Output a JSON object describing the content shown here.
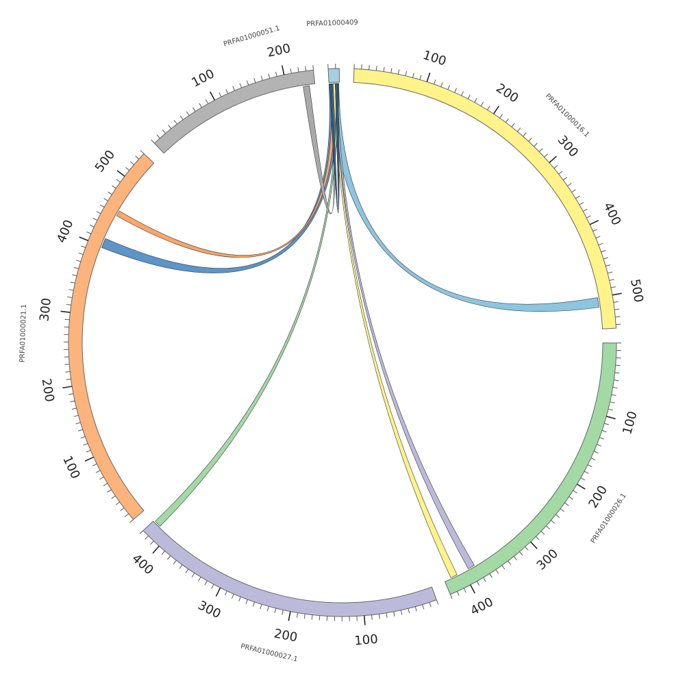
{
  "diagram": {
    "type": "circos",
    "segments": [
      {
        "name": "PRFA01000409",
        "length": 15,
        "color": "#a6cee3",
        "tick_labels": []
      },
      {
        "name": "PRFA01000016.1",
        "length": 545,
        "color": "#fff38a",
        "tick_labels": [
          "100",
          "200",
          "300",
          "400",
          "500"
        ]
      },
      {
        "name": "PRFA01000026.1",
        "length": 430,
        "color": "#a3d9a5",
        "tick_labels": [
          "100",
          "200",
          "300",
          "400"
        ]
      },
      {
        "name": "PRFA01000027.1",
        "length": 430,
        "color": "#bcbadb",
        "tick_labels": [
          "100",
          "200",
          "300",
          "400"
        ]
      },
      {
        "name": "PRFA01000021.1",
        "length": 540,
        "color": "#fdb37c",
        "tick_labels": [
          "100",
          "200",
          "300",
          "400",
          "500"
        ]
      },
      {
        "name": "PRFA01000051.1",
        "length": 240,
        "color": "#b3b3b3",
        "tick_labels": [
          "100",
          "200"
        ]
      }
    ],
    "links": [
      {
        "from": "PRFA01000409",
        "from_range": [
          0,
          14
        ],
        "to": "PRFA01000016.1",
        "to_range": [
          500,
          514
        ],
        "color": "#8ec5e0"
      },
      {
        "from": "PRFA01000409",
        "from_range": [
          0,
          14
        ],
        "to": "PRFA01000021.1",
        "to_range": [
          398,
          412
        ],
        "color": "#5b95c9"
      },
      {
        "from": "PRFA01000409",
        "from_range": [
          3,
          9
        ],
        "to": "PRFA01000021.1",
        "to_range": [
          448,
          456
        ],
        "color": "#fca66a"
      },
      {
        "from": "PRFA01000409",
        "from_range": [
          2,
          7
        ],
        "to": "PRFA01000051.1",
        "to_range": [
          223,
          232
        ],
        "color": "#a9a9a9"
      },
      {
        "from": "PRFA01000409",
        "from_range": [
          6,
          9
        ],
        "to": "PRFA01000026.1",
        "to_range": [
          410,
          420
        ],
        "color": "#fff38a"
      },
      {
        "from": "PRFA01000409",
        "from_range": [
          9,
          12
        ],
        "to": "PRFA01000026.1",
        "to_range": [
          382,
          392
        ],
        "color": "#bcbadb"
      },
      {
        "from": "PRFA01000409",
        "from_range": [
          10,
          13
        ],
        "to": "PRFA01000027.1",
        "to_range": [
          418,
          428
        ],
        "color": "#a3d9a5"
      },
      {
        "from": "PRFA01000409",
        "from_range": [
          1,
          5
        ],
        "to": "PRFA01000409",
        "to_range": [
          9,
          13
        ],
        "color": "#2e5a85"
      }
    ]
  }
}
